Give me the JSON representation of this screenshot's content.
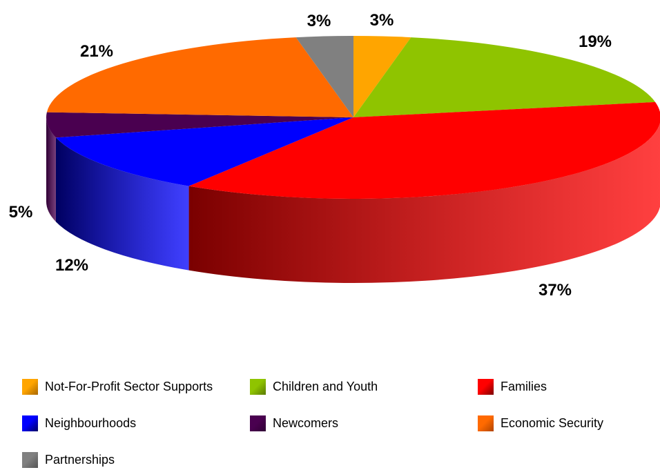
{
  "chart_data": {
    "type": "pie",
    "three_d": true,
    "labels": [
      "Not-For-Profit Sector Supports",
      "Children and Youth",
      "Families",
      "Neighbourhoods",
      "Newcomers",
      "Economic Security",
      "Partnerships"
    ],
    "values": [
      3,
      19,
      37,
      12,
      5,
      21,
      3
    ],
    "data_labels": [
      "3%",
      "19%",
      "37%",
      "12%",
      "5%",
      "21%",
      "3%"
    ],
    "colors": [
      "#ffa500",
      "#8fc400",
      "#ff0000",
      "#0000ff",
      "#4a0050",
      "#ff6a00",
      "#808080"
    ],
    "side_colors": [
      "#a86800",
      "#5a7a00",
      "#7a0000",
      "#000060",
      "#300035",
      "#b04400",
      "#555555"
    ],
    "legend_position": "bottom",
    "legend": [
      {
        "label": "Not-For-Profit Sector Supports",
        "color": "#ffa500"
      },
      {
        "label": "Children and Youth",
        "color": "#8fc400"
      },
      {
        "label": "Families",
        "color": "#ff0000"
      },
      {
        "label": "Neighbourhoods",
        "color": "#0000ff"
      },
      {
        "label": "Newcomers",
        "color": "#4a0050"
      },
      {
        "label": "Economic Security",
        "color": "#ff6a00"
      },
      {
        "label": "Partnerships",
        "color": "#808080"
      }
    ]
  }
}
